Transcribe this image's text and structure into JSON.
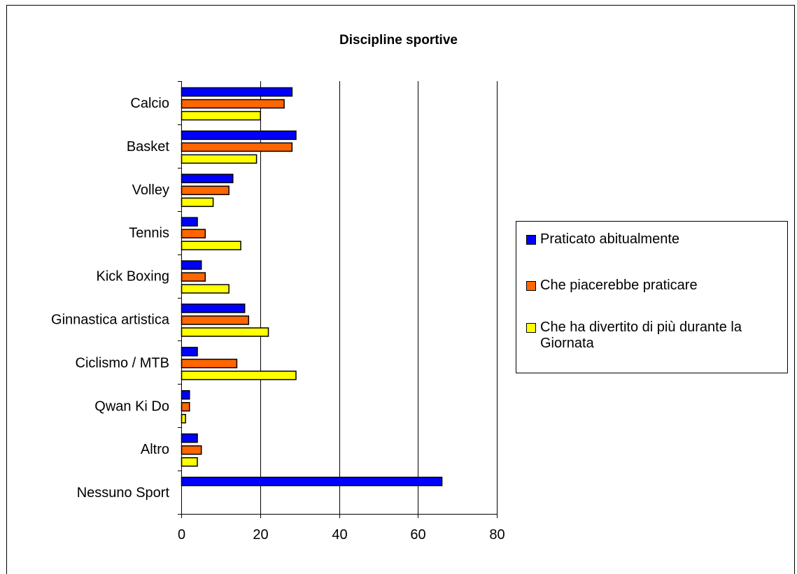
{
  "chart_data": {
    "type": "bar",
    "orientation": "horizontal",
    "title": "Discipline sportive",
    "xlabel": "",
    "ylabel": "",
    "xlim": [
      0,
      80
    ],
    "x_ticks": [
      0,
      20,
      40,
      60,
      80
    ],
    "grid": "vertical major gridlines",
    "legend_position": "right",
    "categories": [
      "Calcio",
      "Basket",
      "Volley",
      "Tennis",
      "Kick Boxing",
      "Ginnastica artistica",
      "Ciclismo / MTB",
      "Qwan Ki Do",
      "Altro",
      "Nessuno Sport"
    ],
    "series": [
      {
        "name": "Praticato abitualmente",
        "color": "#0000FF",
        "values": [
          28,
          29,
          13,
          4,
          5,
          16,
          4,
          2,
          4,
          66
        ]
      },
      {
        "name": "Che piacerebbe praticare",
        "color": "#FF6600",
        "values": [
          26,
          28,
          12,
          6,
          6,
          17,
          14,
          2,
          5,
          0
        ]
      },
      {
        "name": "Che ha divertito di più durante la Giornata",
        "color": "#FFFF00",
        "values": [
          20,
          19,
          8,
          15,
          12,
          22,
          29,
          1,
          4,
          0
        ]
      }
    ]
  }
}
